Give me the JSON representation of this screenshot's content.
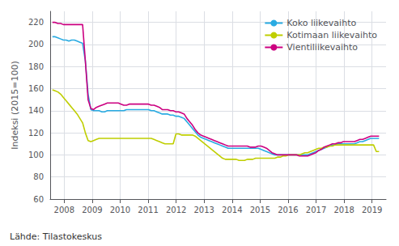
{
  "chart_data": {
    "type": "line",
    "ylabel": "Indeksi (2015=100)",
    "annotations": [
      "Lähde: Tilastokeskus"
    ],
    "x": [
      2007.58,
      2007.6781,
      2007.7761,
      2007.8742,
      2007.9723,
      2008.0703,
      2008.1684,
      2008.2665,
      2008.3645,
      2008.4626,
      2008.5607,
      2008.6587,
      2008.7568,
      2008.8549,
      2008.9529,
      2009.051,
      2009.1491,
      2009.2471,
      2009.3452,
      2009.4433,
      2009.5413,
      2009.6394,
      2009.7375,
      2009.8355,
      2009.9336,
      2010.0317,
      2010.1297,
      2010.2278,
      2010.3259,
      2010.4239,
      2010.522,
      2010.6201,
      2010.7182,
      2010.8162,
      2010.9143,
      2011.0124,
      2011.1104,
      2011.2085,
      2011.3066,
      2011.4046,
      2011.5027,
      2011.6008,
      2011.6988,
      2011.7969,
      2011.895,
      2011.993,
      2012.0911,
      2012.1892,
      2012.2872,
      2012.3853,
      2012.4834,
      2012.5814,
      2012.6795,
      2012.7776,
      2012.8756,
      2012.9737,
      2013.0718,
      2013.1698,
      2013.2679,
      2013.366,
      2013.464,
      2013.5621,
      2013.6602,
      2013.7582,
      2013.8563,
      2013.9544,
      2014.0524,
      2014.1505,
      2014.2486,
      2014.3466,
      2014.4447,
      2014.5428,
      2014.6408,
      2014.7389,
      2014.837,
      2014.935,
      2015.0331,
      2015.1312,
      2015.2292,
      2015.3273,
      2015.4254,
      2015.5234,
      2015.6215,
      2015.7196,
      2015.8176,
      2015.9157,
      2016.0138,
      2016.1118,
      2016.2099,
      2016.308,
      2016.4061,
      2016.5041,
      2016.6022,
      2016.7003,
      2016.7983,
      2016.8964,
      2016.9945,
      2017.0925,
      2017.1906,
      2017.2887,
      2017.3867,
      2017.4848,
      2017.5829,
      2017.6809,
      2017.779,
      2017.8771,
      2017.9751,
      2018.0732,
      2018.1713,
      2018.2693,
      2018.3674,
      2018.4655,
      2018.5635,
      2018.6616,
      2018.7597,
      2018.8577,
      2018.9558,
      2019.0539,
      2019.1519,
      2019.25
    ],
    "series": [
      {
        "name": "Koko liikevaihto",
        "color": "#29ABE2",
        "values": [
          207,
          207,
          206,
          205,
          204,
          204,
          203,
          204,
          204,
          203,
          202,
          201,
          185,
          155,
          141,
          140,
          140,
          140,
          139,
          139,
          140,
          140,
          140,
          140,
          140,
          140,
          140,
          141,
          141,
          141,
          141,
          141,
          141,
          141,
          141,
          141,
          140,
          140,
          139,
          138,
          137,
          137,
          137,
          136,
          136,
          135,
          135,
          134,
          133,
          130,
          127,
          124,
          121,
          118,
          116,
          115,
          114,
          113,
          112,
          111,
          110,
          109,
          108,
          107,
          106,
          106,
          106,
          106,
          106,
          106,
          106,
          106,
          106,
          106,
          106,
          106,
          105,
          104,
          103,
          102,
          101,
          100,
          100,
          100,
          100,
          100,
          100,
          100,
          100,
          100,
          100,
          100,
          100,
          100,
          101,
          102,
          103,
          104,
          105,
          106,
          107,
          108,
          109,
          109,
          110,
          110,
          110,
          110,
          110,
          110,
          110,
          111,
          112,
          112,
          113,
          114,
          115,
          115,
          115,
          115
        ]
      },
      {
        "name": "Kotimaan liikevaihto",
        "color": "#BFCE00",
        "values": [
          159,
          158,
          157,
          155,
          152,
          149,
          146,
          143,
          140,
          137,
          133,
          129,
          120,
          113,
          112,
          113,
          114,
          115,
          115,
          115,
          115,
          115,
          115,
          115,
          115,
          115,
          115,
          115,
          115,
          115,
          115,
          115,
          115,
          115,
          115,
          115,
          115,
          114,
          113,
          112,
          111,
          110,
          110,
          110,
          110,
          119,
          119,
          118,
          118,
          118,
          118,
          118,
          117,
          115,
          113,
          111,
          109,
          107,
          105,
          103,
          101,
          99,
          97,
          96,
          96,
          96,
          96,
          96,
          95,
          95,
          95,
          96,
          96,
          96,
          97,
          97,
          97,
          97,
          97,
          97,
          97,
          97,
          98,
          98,
          99,
          99,
          100,
          100,
          100,
          100,
          100,
          101,
          102,
          102,
          103,
          104,
          105,
          106,
          106,
          107,
          107,
          108,
          108,
          109,
          109,
          109,
          109,
          109,
          109,
          109,
          109,
          109,
          109,
          109,
          109,
          109,
          109,
          109,
          103,
          103
        ]
      },
      {
        "name": "Vientiliikevaihto",
        "color": "#CC0080",
        "values": [
          220,
          220,
          219,
          219,
          218,
          218,
          218,
          218,
          218,
          218,
          218,
          218,
          185,
          150,
          142,
          141,
          143,
          144,
          145,
          146,
          147,
          147,
          147,
          147,
          147,
          146,
          145,
          145,
          146,
          146,
          146,
          146,
          146,
          146,
          146,
          146,
          145,
          145,
          144,
          143,
          141,
          141,
          141,
          140,
          140,
          139,
          139,
          138,
          137,
          133,
          130,
          127,
          123,
          120,
          118,
          117,
          116,
          115,
          114,
          113,
          112,
          111,
          110,
          109,
          108,
          108,
          108,
          108,
          108,
          108,
          108,
          108,
          107,
          107,
          107,
          108,
          108,
          107,
          106,
          104,
          102,
          101,
          100,
          100,
          100,
          100,
          100,
          100,
          100,
          100,
          99,
          99,
          99,
          99,
          100,
          101,
          102,
          104,
          105,
          107,
          108,
          109,
          110,
          110,
          111,
          111,
          112,
          112,
          112,
          112,
          112,
          113,
          114,
          114,
          115,
          116,
          117,
          117,
          117,
          117
        ]
      }
    ],
    "xlim": [
      2007.5,
      2019.5
    ],
    "xticks": [
      2008,
      2009,
      2010,
      2011,
      2012,
      2013,
      2014,
      2015,
      2016,
      2017,
      2018,
      2019
    ],
    "ylim": [
      60,
      230
    ],
    "yticks": [
      60,
      80,
      100,
      120,
      140,
      160,
      180,
      200,
      220
    ],
    "grid": true,
    "legend": "upper right"
  }
}
